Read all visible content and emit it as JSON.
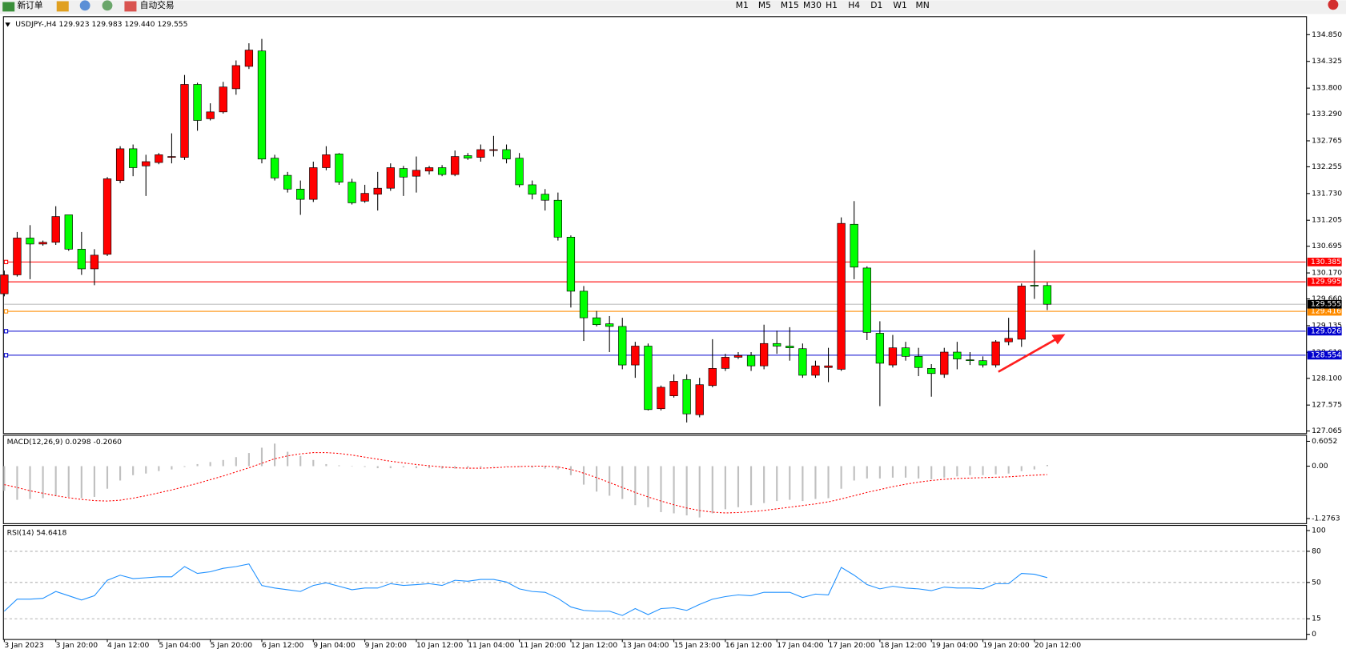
{
  "toolbar": {
    "buttons": [
      "新订单",
      "自动交易"
    ],
    "timeframes": [
      "M1",
      "M5",
      "M15",
      "M30",
      "H1",
      "H4",
      "D1",
      "W1",
      "MN"
    ]
  },
  "chart_data": [
    {
      "type": "candlestick",
      "title": "USDJPY-,H4  129.923 129.983 129.440 129.555",
      "categories": [
        "3 Jan 2023",
        null,
        null,
        null,
        "3 Jan 20:00",
        null,
        null,
        null,
        "4 Jan 12:00",
        null,
        null,
        null,
        "5 Jan 04:00",
        null,
        null,
        null,
        "5 Jan 20:00",
        null,
        null,
        null,
        "6 Jan 12:00",
        null,
        null,
        null,
        "9 Jan 04:00",
        null,
        null,
        null,
        "9 Jan 20:00",
        null,
        null,
        null,
        "10 Jan 12:00",
        null,
        null,
        null,
        "11 Jan 04:00",
        null,
        null,
        null,
        "11 Jan 20:00",
        null,
        null,
        null,
        "12 Jan 12:00",
        null,
        null,
        null,
        "13 Jan 04:00",
        null,
        null,
        null,
        "15 Jan 23:00",
        null,
        null,
        null,
        "16 Jan 12:00",
        null,
        null,
        null,
        "17 Jan 04:00",
        null,
        null,
        null,
        "17 Jan 20:00",
        null,
        null,
        null,
        "18 Jan 12:00",
        null,
        null,
        null,
        "19 Jan 04:00",
        null,
        null,
        null,
        "19 Jan 20:00",
        null,
        null,
        null,
        "20 Jan 12:00",
        null
      ],
      "open": [
        129.761,
        130.132,
        130.856,
        130.738,
        130.772,
        131.311,
        130.637,
        130.25,
        130.536,
        131.985,
        132.609,
        132.272,
        132.339,
        132.44,
        132.44,
        133.873,
        133.199,
        133.333,
        133.788,
        134.227,
        134.53,
        132.424,
        132.087,
        131.817,
        131.615,
        132.238,
        132.508,
        131.952,
        131.581,
        131.716,
        131.834,
        132.221,
        132.07,
        132.171,
        132.238,
        132.103,
        132.474,
        132.44,
        132.575,
        132.592,
        132.424,
        131.901,
        131.716,
        131.598,
        130.873,
        129.811,
        129.289,
        129.171,
        129.12,
        128.362,
        128.733,
        127.503,
        127.756,
        128.076,
        127.385,
        127.958,
        128.295,
        128.514,
        128.548,
        128.345,
        128.784,
        128.733,
        128.682,
        128.16,
        128.312,
        128.278,
        131.126,
        130.267,
        128.985,
        128.362,
        128.699,
        128.531,
        128.295,
        128.177,
        128.615,
        128.464,
        128.447,
        128.362,
        128.817,
        128.868,
        129.929,
        129.923
      ],
      "high": [
        130.216,
        130.974,
        131.109,
        130.806,
        131.48,
        131.311,
        130.974,
        130.637,
        132.053,
        132.659,
        132.693,
        132.491,
        132.525,
        132.912,
        134.058,
        133.906,
        133.502,
        133.923,
        134.344,
        134.681,
        134.766,
        132.491,
        132.154,
        131.985,
        132.356,
        132.659,
        132.525,
        132.019,
        131.901,
        132.154,
        132.322,
        132.272,
        132.457,
        132.272,
        132.289,
        132.575,
        132.525,
        132.693,
        132.862,
        132.693,
        132.525,
        131.985,
        131.817,
        131.749,
        130.907,
        129.913,
        129.424,
        129.323,
        129.289,
        128.817,
        128.784,
        127.958,
        128.177,
        128.177,
        128.11,
        128.868,
        128.581,
        128.615,
        128.615,
        129.154,
        129.036,
        129.104,
        128.784,
        128.447,
        128.699,
        131.261,
        131.581,
        130.3,
        129.221,
        128.952,
        128.817,
        128.699,
        128.379,
        128.699,
        128.817,
        128.615,
        128.531,
        128.851,
        129.289,
        129.963,
        130.62,
        129.983
      ],
      "low": [
        129.71,
        130.098,
        130.047,
        130.705,
        130.721,
        130.604,
        130.132,
        129.929,
        130.502,
        131.935,
        132.07,
        131.682,
        132.305,
        132.322,
        132.39,
        132.963,
        133.165,
        133.3,
        133.67,
        134.176,
        132.322,
        131.985,
        131.749,
        131.311,
        131.564,
        132.187,
        131.901,
        131.514,
        131.547,
        131.396,
        131.783,
        131.682,
        131.749,
        132.103,
        132.07,
        132.07,
        132.39,
        132.356,
        132.457,
        132.322,
        131.851,
        131.615,
        131.396,
        130.806,
        129.491,
        128.834,
        129.12,
        128.615,
        128.278,
        128.11,
        127.469,
        127.469,
        127.722,
        127.233,
        127.334,
        127.924,
        128.245,
        128.48,
        128.245,
        128.278,
        128.581,
        128.447,
        128.11,
        128.11,
        128.025,
        128.245,
        130.047,
        128.851,
        127.554,
        128.312,
        128.447,
        128.143,
        127.739,
        128.11,
        128.278,
        128.362,
        128.312,
        128.312,
        128.75,
        128.717,
        129.66,
        129.44
      ],
      "close": [
        130.132,
        130.856,
        130.738,
        130.772,
        131.278,
        130.637,
        130.25,
        130.519,
        132.019,
        132.609,
        132.238,
        132.356,
        132.491,
        132.457,
        133.873,
        133.165,
        133.333,
        133.822,
        134.243,
        134.547,
        132.407,
        132.036,
        131.817,
        131.615,
        132.238,
        132.491,
        131.952,
        131.547,
        131.733,
        131.834,
        132.238,
        132.053,
        132.187,
        132.238,
        132.103,
        132.457,
        132.424,
        132.592,
        132.592,
        132.407,
        131.901,
        131.716,
        131.598,
        130.873,
        129.811,
        129.289,
        129.154,
        129.12,
        128.362,
        128.733,
        127.486,
        127.924,
        128.042,
        127.402,
        127.975,
        128.295,
        128.514,
        128.548,
        128.345,
        128.784,
        128.733,
        128.699,
        128.16,
        128.345,
        128.345,
        131.143,
        130.284,
        129.002,
        128.396,
        128.699,
        128.531,
        128.312,
        128.194,
        128.615,
        128.48,
        128.447,
        128.362,
        128.817,
        128.885,
        129.913,
        129.913,
        129.555
      ],
      "up_color": "#ff0000",
      "down_color": "#00ff00",
      "ylim": [
        127.065,
        134.85
      ],
      "yticks": [
        {
          "value": 134.85,
          "label": "134.850"
        },
        134.325,
        {
          "value": 133.8,
          "label": "133.800"
        },
        {
          "value": 133.29,
          "label": "133.290"
        },
        132.765,
        132.255,
        {
          "value": 131.73,
          "label": "131.730"
        },
        131.205,
        130.695,
        {
          "value": 130.17,
          "label": "130.170"
        },
        {
          "value": 129.66,
          "label": "129.660"
        },
        129.135,
        {
          "value": 128.61,
          "label": "128.610"
        },
        {
          "value": 128.1,
          "label": "128.100"
        },
        127.575,
        127.065
      ],
      "levels": [
        {
          "value": 130.385,
          "color": "#ff0000"
        },
        {
          "value": 129.995,
          "color": "#ff0000"
        },
        {
          "value": 129.416,
          "color": "#ff8c00"
        },
        {
          "value": 129.026,
          "color": "#0000cd"
        },
        {
          "value": 128.554,
          "color": "#0000cd"
        }
      ],
      "bid": 129.555
    },
    {
      "type": "macd",
      "title": "MACD(12,26,9) 0.0298 -0.2060",
      "values": [
        -0.6,
        -0.82,
        -0.8,
        -0.78,
        -0.72,
        -0.75,
        -0.78,
        -0.75,
        -0.55,
        -0.35,
        -0.22,
        -0.18,
        -0.12,
        -0.08,
        -0.02,
        0.05,
        0.1,
        0.15,
        0.22,
        0.32,
        0.45,
        0.55,
        0.35,
        0.25,
        0.15,
        0.05,
        0.02,
        0,
        -0.02,
        -0.05,
        -0.05,
        -0.03,
        -0.05,
        -0.05,
        -0.06,
        -0.06,
        -0.04,
        -0.03,
        -0.01,
        0,
        -0.02,
        -0.04,
        -0.06,
        -0.08,
        -0.22,
        -0.45,
        -0.62,
        -0.72,
        -0.8,
        -0.95,
        -1,
        -1.12,
        -1.15,
        -1.2,
        -1.25,
        -1.15,
        -1.05,
        -1,
        -0.95,
        -0.9,
        -0.85,
        -0.82,
        -0.85,
        -0.8,
        -0.78,
        -0.55,
        -0.35,
        -0.3,
        -0.3,
        -0.28,
        -0.28,
        -0.3,
        -0.32,
        -0.28,
        -0.25,
        -0.22,
        -0.22,
        -0.2,
        -0.18,
        -0.12,
        -0.08,
        0.0298
      ],
      "color": "#c0c0c0",
      "signal": [
        -0.45,
        -0.52,
        -0.6,
        -0.66,
        -0.72,
        -0.77,
        -0.81,
        -0.84,
        -0.85,
        -0.83,
        -0.78,
        -0.72,
        -0.65,
        -0.58,
        -0.5,
        -0.42,
        -0.33,
        -0.24,
        -0.14,
        -0.04,
        0.07,
        0.18,
        0.25,
        0.3,
        0.33,
        0.33,
        0.31,
        0.27,
        0.22,
        0.17,
        0.12,
        0.08,
        0.04,
        0.01,
        -0.02,
        -0.04,
        -0.05,
        -0.05,
        -0.04,
        -0.02,
        -0.01,
        0,
        0,
        -0.02,
        -0.08,
        -0.17,
        -0.28,
        -0.4,
        -0.52,
        -0.64,
        -0.75,
        -0.85,
        -0.94,
        -1.02,
        -1.08,
        -1.12,
        -1.14,
        -1.13,
        -1.11,
        -1.08,
        -1.04,
        -1,
        -0.96,
        -0.92,
        -0.87,
        -0.8,
        -0.72,
        -0.64,
        -0.57,
        -0.5,
        -0.44,
        -0.39,
        -0.35,
        -0.32,
        -0.3,
        -0.29,
        -0.28,
        -0.27,
        -0.26,
        -0.24,
        -0.22,
        -0.206
      ],
      "signal_color": "#ff0000",
      "ylim": [
        -1.2763,
        0.6052
      ],
      "yticks": [
        0.6052,
        {
          "value": 0,
          "label": "0.00"
        },
        -1.2763
      ]
    },
    {
      "type": "line",
      "title": "RSI(14) 54.6418",
      "values": [
        22.3,
        33.9,
        33.9,
        34.7,
        41.3,
        37.2,
        33.1,
        37.2,
        52.1,
        57.0,
        53.7,
        54.5,
        55.4,
        55.4,
        65.3,
        58.7,
        60.3,
        63.6,
        65.3,
        67.8,
        47.1,
        44.6,
        43.0,
        41.3,
        47.1,
        49.6,
        46.3,
        43.0,
        44.6,
        44.6,
        48.8,
        47.1,
        47.9,
        48.8,
        47.1,
        52.1,
        51.2,
        52.9,
        52.9,
        50.4,
        43.8,
        41.3,
        40.5,
        34.7,
        26.4,
        23.1,
        22.3,
        22.3,
        18.2,
        24.8,
        19.0,
        24.8,
        25.6,
        23.1,
        28.9,
        33.9,
        36.4,
        38.0,
        37.2,
        40.5,
        40.5,
        40.5,
        35.5,
        38.8,
        38.0,
        64.5,
        57.0,
        47.9,
        43.8,
        46.3,
        44.6,
        43.8,
        42.1,
        45.5,
        44.6,
        44.6,
        43.8,
        48.8,
        48.8,
        58.7,
        57.9,
        54.6418
      ],
      "color": "#1e90ff",
      "ylim": [
        0,
        100
      ],
      "yticks": [
        100,
        80,
        50,
        15,
        0
      ]
    }
  ]
}
